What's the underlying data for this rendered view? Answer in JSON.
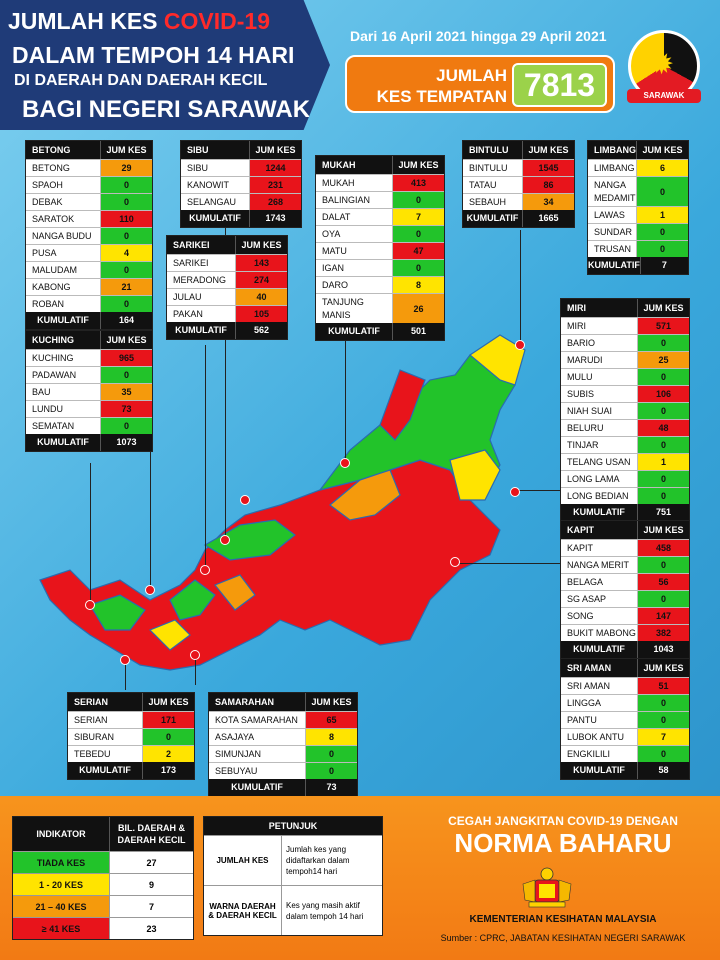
{
  "header": {
    "line1_a": "JUMLAH KES",
    "line1_b": "COVID-19",
    "line2": "DALAM TEMPOH 14 HARI",
    "line3": "DI DAERAH DAN DAERAH KECIL",
    "line4": "BAGI NEGERI SARAWAK",
    "date_range": "Dari 16 April 2021 hingga 29 April 2021",
    "total_label_1": "JUMLAH",
    "total_label_2": "KES TEMPATAN",
    "total_value": "7813",
    "seal_label": "SARAWAK"
  },
  "col_header": "JUM KES",
  "total_word": "KUMULATIF",
  "panels": {
    "betong": {
      "name": "BETONG",
      "rows": [
        {
          "n": "BETONG",
          "v": "29",
          "c": "o"
        },
        {
          "n": "SPAOH",
          "v": "0",
          "c": "g"
        },
        {
          "n": "DEBAK",
          "v": "0",
          "c": "g"
        },
        {
          "n": "SARATOK",
          "v": "110",
          "c": "r"
        },
        {
          "n": "NANGA BUDU",
          "v": "0",
          "c": "g"
        },
        {
          "n": "PUSA",
          "v": "4",
          "c": "y"
        },
        {
          "n": "MALUDAM",
          "v": "0",
          "c": "g"
        },
        {
          "n": "KABONG",
          "v": "21",
          "c": "o"
        },
        {
          "n": "ROBAN",
          "v": "0",
          "c": "g"
        }
      ],
      "total": "164"
    },
    "sibu": {
      "name": "SIBU",
      "rows": [
        {
          "n": "SIBU",
          "v": "1244",
          "c": "r"
        },
        {
          "n": "KANOWIT",
          "v": "231",
          "c": "r"
        },
        {
          "n": "SELANGAU",
          "v": "268",
          "c": "r"
        }
      ],
      "total": "1743"
    },
    "sarikei": {
      "name": "SARIKEI",
      "rows": [
        {
          "n": "SARIKEI",
          "v": "143",
          "c": "r"
        },
        {
          "n": "MERADONG",
          "v": "274",
          "c": "r"
        },
        {
          "n": "JULAU",
          "v": "40",
          "c": "o"
        },
        {
          "n": "PAKAN",
          "v": "105",
          "c": "r"
        }
      ],
      "total": "562"
    },
    "mukah": {
      "name": "MUKAH",
      "rows": [
        {
          "n": "MUKAH",
          "v": "413",
          "c": "r"
        },
        {
          "n": "BALINGIAN",
          "v": "0",
          "c": "g"
        },
        {
          "n": "DALAT",
          "v": "7",
          "c": "y"
        },
        {
          "n": "OYA",
          "v": "0",
          "c": "g"
        },
        {
          "n": "MATU",
          "v": "47",
          "c": "r"
        },
        {
          "n": "IGAN",
          "v": "0",
          "c": "g"
        },
        {
          "n": "DARO",
          "v": "8",
          "c": "y"
        },
        {
          "n": "TANJUNG MANIS",
          "v": "26",
          "c": "o",
          "tall": true
        }
      ],
      "total": "501"
    },
    "bintulu": {
      "name": "BINTULU",
      "rows": [
        {
          "n": "BINTULU",
          "v": "1545",
          "c": "r"
        },
        {
          "n": "TATAU",
          "v": "86",
          "c": "r"
        },
        {
          "n": "SEBAUH",
          "v": "34",
          "c": "o"
        }
      ],
      "total": "1665"
    },
    "limbang": {
      "name": "LIMBANG",
      "rows": [
        {
          "n": "LIMBANG",
          "v": "6",
          "c": "y"
        },
        {
          "n": "NANGA MEDAMIT",
          "v": "0",
          "c": "g",
          "tall": true
        },
        {
          "n": "LAWAS",
          "v": "1",
          "c": "y"
        },
        {
          "n": "SUNDAR",
          "v": "0",
          "c": "g"
        },
        {
          "n": "TRUSAN",
          "v": "0",
          "c": "g"
        }
      ],
      "total": "7"
    },
    "kuching": {
      "name": "KUCHING",
      "rows": [
        {
          "n": "KUCHING",
          "v": "965",
          "c": "r"
        },
        {
          "n": "PADAWAN",
          "v": "0",
          "c": "g"
        },
        {
          "n": "BAU",
          "v": "35",
          "c": "o"
        },
        {
          "n": "LUNDU",
          "v": "73",
          "c": "r"
        },
        {
          "n": "SEMATAN",
          "v": "0",
          "c": "g"
        }
      ],
      "total": "1073"
    },
    "miri": {
      "name": "MIRI",
      "rows": [
        {
          "n": "MIRI",
          "v": "571",
          "c": "r"
        },
        {
          "n": "BARIO",
          "v": "0",
          "c": "g"
        },
        {
          "n": "MARUDI",
          "v": "25",
          "c": "o"
        },
        {
          "n": "MULU",
          "v": "0",
          "c": "g"
        },
        {
          "n": "SUBIS",
          "v": "106",
          "c": "r"
        },
        {
          "n": "NIAH SUAI",
          "v": "0",
          "c": "g"
        },
        {
          "n": "BELURU",
          "v": "48",
          "c": "r"
        },
        {
          "n": "TINJAR",
          "v": "0",
          "c": "g"
        },
        {
          "n": "TELANG USAN",
          "v": "1",
          "c": "y"
        },
        {
          "n": "LONG LAMA",
          "v": "0",
          "c": "g"
        },
        {
          "n": "LONG BEDIAN",
          "v": "0",
          "c": "g"
        }
      ],
      "total": "751"
    },
    "kapit": {
      "name": "KAPIT",
      "rows": [
        {
          "n": "KAPIT",
          "v": "458",
          "c": "r"
        },
        {
          "n": "NANGA MERIT",
          "v": "0",
          "c": "g"
        },
        {
          "n": "BELAGA",
          "v": "56",
          "c": "r"
        },
        {
          "n": "SG ASAP",
          "v": "0",
          "c": "g"
        },
        {
          "n": "SONG",
          "v": "147",
          "c": "r"
        },
        {
          "n": "BUKIT MABONG",
          "v": "382",
          "c": "r"
        }
      ],
      "total": "1043"
    },
    "sriaman": {
      "name": "SRI AMAN",
      "rows": [
        {
          "n": "SRI AMAN",
          "v": "51",
          "c": "r"
        },
        {
          "n": "LINGGA",
          "v": "0",
          "c": "g"
        },
        {
          "n": "PANTU",
          "v": "0",
          "c": "g"
        },
        {
          "n": "LUBOK ANTU",
          "v": "7",
          "c": "y"
        },
        {
          "n": "ENGKILILI",
          "v": "0",
          "c": "g"
        }
      ],
      "total": "58"
    },
    "serian": {
      "name": "SERIAN",
      "rows": [
        {
          "n": "SERIAN",
          "v": "171",
          "c": "r"
        },
        {
          "n": "SIBURAN",
          "v": "0",
          "c": "g"
        },
        {
          "n": "TEBEDU",
          "v": "2",
          "c": "y"
        }
      ],
      "total": "173"
    },
    "samarahan": {
      "name": "SAMARAHAN",
      "rows": [
        {
          "n": "KOTA SAMARAHAN",
          "v": "65",
          "c": "r"
        },
        {
          "n": "ASAJAYA",
          "v": "8",
          "c": "y"
        },
        {
          "n": "SIMUNJAN",
          "v": "0",
          "c": "g"
        },
        {
          "n": "SEBUYAU",
          "v": "0",
          "c": "g"
        }
      ],
      "total": "73"
    }
  },
  "indicator": {
    "h1": "INDIKATOR",
    "h2": "BIL. DAERAH & DAERAH KECIL",
    "rows": [
      {
        "label": "TIADA KES",
        "count": "27",
        "c": "g"
      },
      {
        "label": "1 - 20 KES",
        "count": "9",
        "c": "y"
      },
      {
        "label": "21 – 40 KES",
        "count": "7",
        "c": "o"
      },
      {
        "label": "≥ 41 KES",
        "count": "23",
        "c": "r"
      }
    ]
  },
  "petunjuk": {
    "title": "PETUNJUK",
    "r1_a": "JUMLAH KES",
    "r1_b": "Jumlah kes yang didaftarkan dalam tempoh14 hari",
    "r2_a": "WARNA DAERAH & DAERAH KECIL",
    "r2_b": "Kes yang masih aktif dalam tempoh 14 hari"
  },
  "footer": {
    "slogan1": "CEGAH JANGKITAN COVID-19 DENGAN",
    "slogan2": "NORMA BAHARU",
    "ministry": "KEMENTERIAN KESIHATAN MALAYSIA",
    "source": "Sumber : CPRC, JABATAN KESIHATAN NEGERI SARAWAK"
  },
  "colors": {
    "g": "#22c32a",
    "y": "#ffe400",
    "o": "#f59a0c",
    "r": "#e8141b"
  }
}
